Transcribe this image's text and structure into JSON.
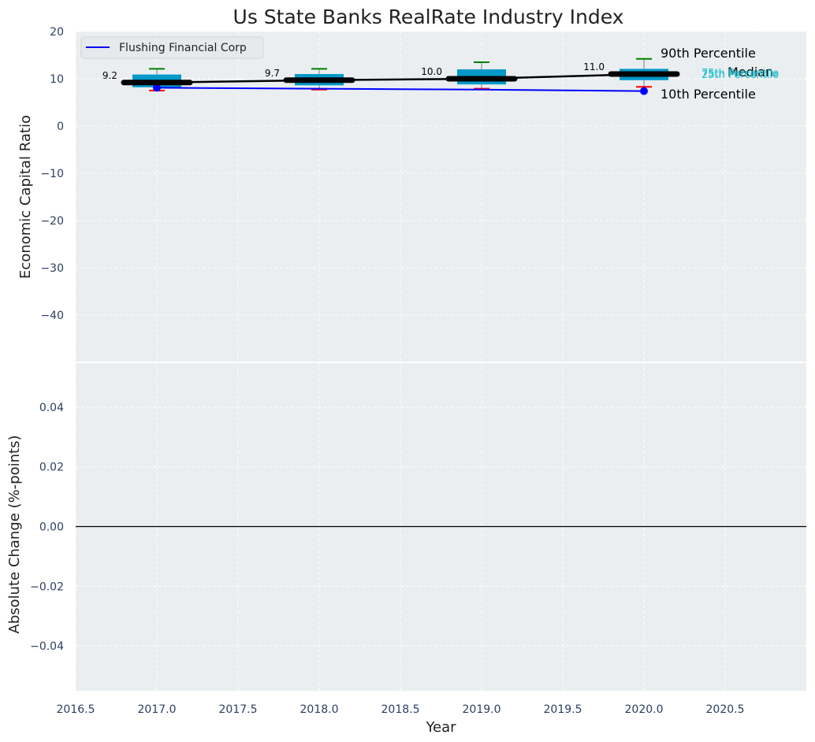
{
  "chart_data": {
    "type": "box",
    "title": "Us State Banks RealRate Industry Index",
    "xlabel": "Year",
    "colors": {
      "panel_bg": "#eaeef0",
      "grid": "#ffffff",
      "box": "#0499c8",
      "median_line": "#000000",
      "company_line": "#0000ff",
      "whisker_high": "#008000",
      "whisker_low": "#ff0000",
      "quartile_label": "#17becf"
    },
    "top_panel": {
      "ylabel": "Economic Capital Ratio",
      "ylim": [
        -50,
        20
      ],
      "yticks": [
        20,
        10,
        0,
        -10,
        -20,
        -30,
        -40
      ],
      "ytick_labels": [
        "20",
        "10",
        "0",
        "−10",
        "−20",
        "−30",
        "−40"
      ],
      "years": [
        2017,
        2018,
        2019,
        2020
      ],
      "median": [
        9.2,
        9.7,
        10.0,
        11.0
      ],
      "median_labels": [
        "9.2",
        "9.7",
        "10.0",
        "11.0"
      ],
      "q25": [
        8.2,
        8.6,
        8.8,
        9.7
      ],
      "q75": [
        10.9,
        11.0,
        12.0,
        12.1
      ],
      "p10": [
        7.5,
        7.7,
        7.9,
        8.3
      ],
      "p90": [
        12.1,
        12.1,
        13.5,
        14.2
      ],
      "company": {
        "name": "Flushing Financial Corp",
        "values": [
          8.1,
          7.9,
          7.7,
          7.4
        ]
      },
      "annotations": {
        "p90": "90th Percentile",
        "median": "Median",
        "p10": "10th Percentile",
        "q75": "75th Percentile",
        "q25": "25th Percentile"
      },
      "legend_position": "top-left",
      "grid": true
    },
    "bottom_panel": {
      "ylabel": "Absolute Change (%-points)",
      "ylim": [
        -0.055,
        0.055
      ],
      "yticks": [
        0.04,
        0.02,
        0.0,
        -0.02,
        -0.04
      ],
      "ytick_labels": [
        "0.04",
        "0.02",
        "0.00",
        "−0.02",
        "−0.04"
      ],
      "zero_line": true,
      "grid": true
    },
    "xlim": [
      2016.5,
      2021.0
    ],
    "xticks": [
      2016.5,
      2017.0,
      2017.5,
      2018.0,
      2018.5,
      2019.0,
      2019.5,
      2020.0,
      2020.5
    ],
    "xtick_labels": [
      "2016.5",
      "2017.0",
      "2017.5",
      "2018.0",
      "2018.5",
      "2019.0",
      "2019.5",
      "2020.0",
      "2020.5"
    ]
  }
}
